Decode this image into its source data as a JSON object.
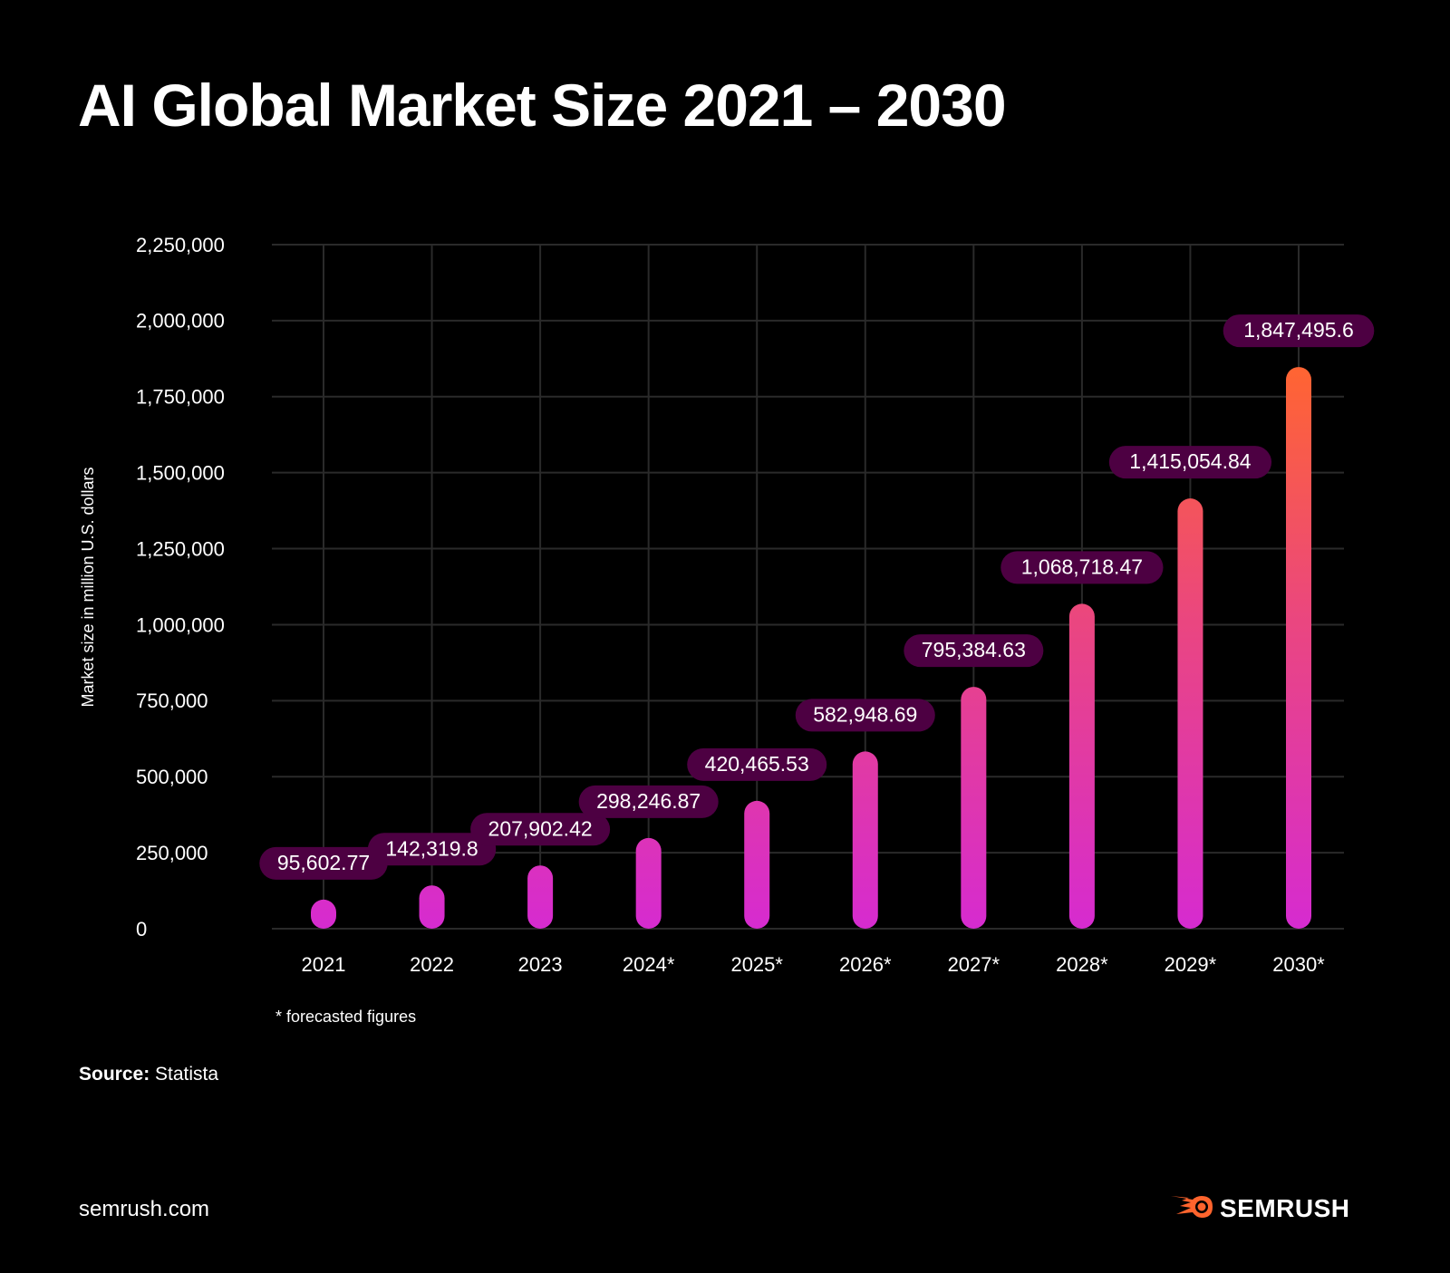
{
  "header": {
    "title": "AI Global Market Size 2021 – 2030"
  },
  "chart_data": {
    "type": "bar",
    "title": "AI Global Market Size 2021 – 2030",
    "xlabel": "",
    "ylabel": "Market size in million U.S. dollars",
    "categories": [
      "2021",
      "2022",
      "2023",
      "2024*",
      "2025*",
      "2026*",
      "2027*",
      "2028*",
      "2029*",
      "2030*"
    ],
    "values": [
      95602.77,
      142319.8,
      207902.42,
      298246.87,
      420465.53,
      582948.69,
      795384.63,
      1068718.47,
      1415054.84,
      1847495.6
    ],
    "data_labels": [
      "95,602.77",
      "142,319.8",
      "207,902.42",
      "298,246.87",
      "420,465.53",
      "582,948.69",
      "795,384.63",
      "1,068,718.47",
      "1,415,054.84",
      "1,847,495.6"
    ],
    "ylim": [
      0,
      2250000
    ],
    "yticks": [
      0,
      250000,
      500000,
      750000,
      1000000,
      1250000,
      1500000,
      1750000,
      2000000,
      2250000
    ],
    "ytick_labels": [
      "0",
      "250,000",
      "500,000",
      "750,000",
      "1,000,000",
      "1,250,000",
      "1,500,000",
      "1,750,000",
      "2,000,000",
      "2,250,000"
    ],
    "grid": true,
    "legend": "none",
    "colors": {
      "bar_bottom": "#d62bd0",
      "bar_mid": "#e8438c",
      "bar_top": "#ff6433",
      "label_bg": "#4d0042",
      "grid": "#2a2a2a"
    }
  },
  "footnote": "* forecasted figures",
  "source": {
    "label": "Source:",
    "value": "Statista"
  },
  "footer": {
    "site": "semrush.com",
    "brand": "SEMRUSH",
    "brand_color": "#ff642d"
  }
}
